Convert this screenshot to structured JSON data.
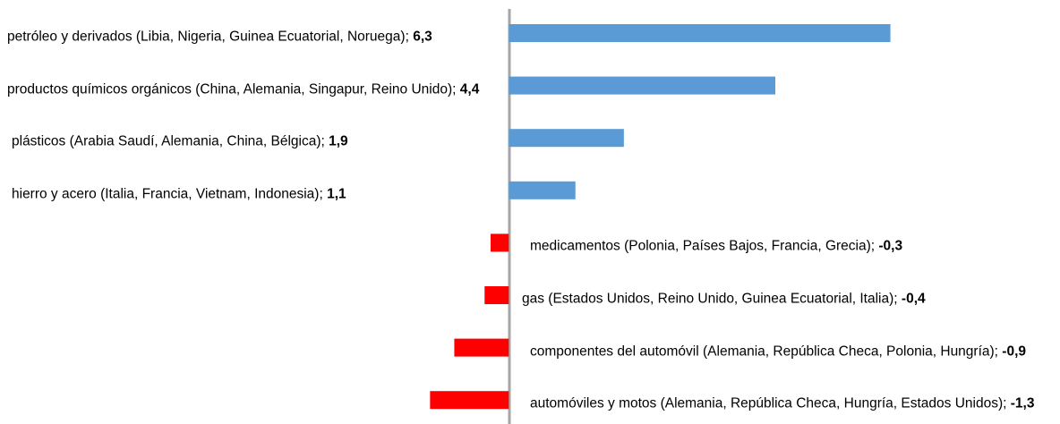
{
  "chart_data": {
    "type": "barh",
    "categories": [
      "petróleo y derivados (Libia, Nigeria, Guinea Ecuatorial, Noruega);",
      "productos químicos orgánicos (China, Alemania, Singapur, Reino Unido);",
      "plásticos (Arabia Saudí, Alemania, China, Bélgica);",
      "hierro y acero (Italia, Francia, Vietnam, Indonesia);",
      "medicamentos (Polonia, Países Bajos, Francia, Grecia);",
      "gas (Estados Unidos, Reino Unido, Guinea Ecuatorial, Italia);",
      "componentes del automóvil (Alemania, República Checa, Polonia, Hungría);",
      "automóviles y motos (Alemania, República Checa, Hungría, Estados Unidos);"
    ],
    "values": [
      6.3,
      4.4,
      1.9,
      1.1,
      -0.3,
      -0.4,
      -0.9,
      -1.3
    ],
    "value_labels": [
      "6,3",
      "4,4",
      "1,9",
      "1,1",
      "-0,3",
      "-0,4",
      "-0,9",
      "-1,3"
    ],
    "color": "#5b9bd5",
    "negative_color": "#ff0000",
    "xlim": [
      -8.4,
      9.1
    ]
  }
}
